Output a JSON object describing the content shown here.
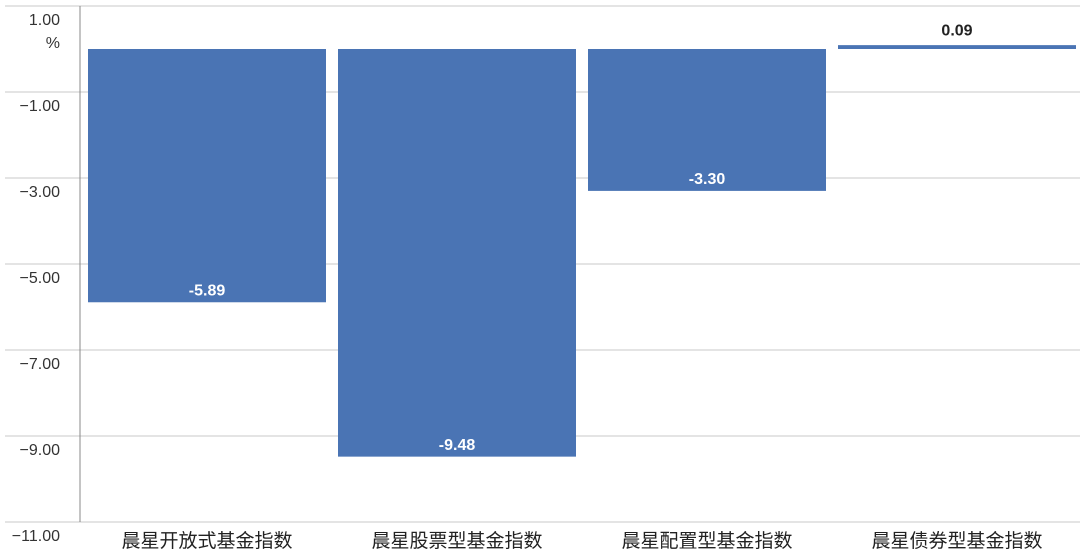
{
  "chart_data": {
    "type": "bar",
    "categories": [
      "晨星开放式基金指数",
      "晨星股票型基金指数",
      "晨星配置型基金指数",
      "晨星债券型基金指数"
    ],
    "values": [
      -5.89,
      -9.48,
      -3.3,
      0.09
    ],
    "value_labels": [
      "-5.89",
      "-9.48",
      "-3.30",
      "0.09"
    ],
    "color": "#4a74b4",
    "y_unit": "%",
    "ylim": [
      -11,
      1
    ],
    "yticks": [
      {
        "value": 1,
        "label": "1.00"
      },
      {
        "value": -1,
        "label": "−1.00"
      },
      {
        "value": -3,
        "label": "−3.00"
      },
      {
        "value": -5,
        "label": "−5.00"
      },
      {
        "value": -7,
        "label": "−7.00"
      },
      {
        "value": -9,
        "label": "−9.00"
      },
      {
        "value": -11,
        "label": "−11.00"
      }
    ],
    "grid": true
  }
}
